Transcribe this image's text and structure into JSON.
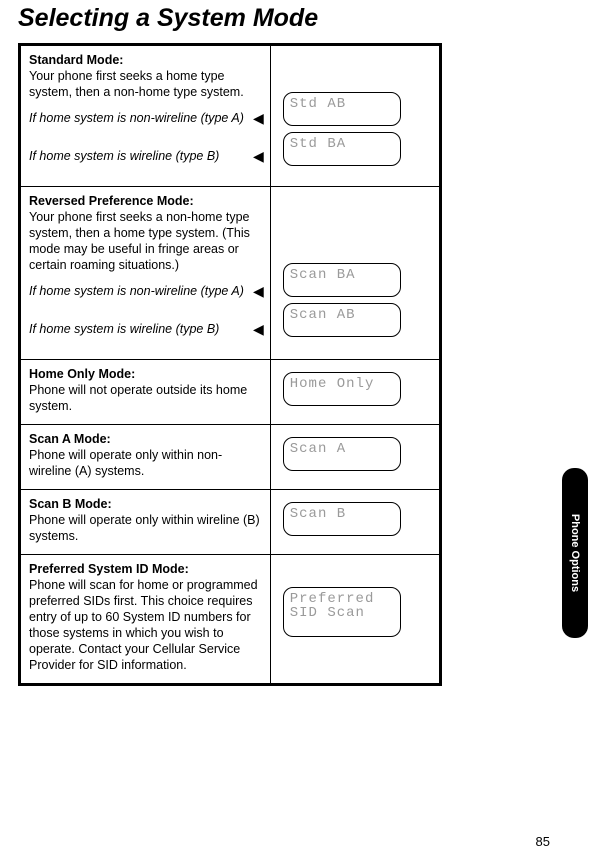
{
  "title": "Selecting a System Mode",
  "sideTab": "Phone Options",
  "pageNumber": "85",
  "rows": {
    "standard": {
      "heading": "Standard Mode:",
      "body": "Your phone first seeks a home type system, then a non-home type system.",
      "noteA": "If home system is non-wireline (type A)",
      "noteB": "If home system is wireline (type B)",
      "lcdA": "Std AB",
      "lcdB": "Std BA"
    },
    "reversed": {
      "heading": "Reversed Preference Mode:",
      "body": "Your phone first seeks a non-home type system, then a home type system. (This mode may be useful in fringe areas or certain roaming situations.)",
      "noteA": "If home system is non-wireline (type A)",
      "noteB": "If home system is wireline (type B)",
      "lcdA": "Scan BA",
      "lcdB": "Scan AB"
    },
    "homeOnly": {
      "heading": "Home Only Mode:",
      "body": "Phone will not operate outside its home system.",
      "lcd": "Home Only"
    },
    "scanA": {
      "heading": "Scan A Mode:",
      "body": "Phone will operate only within non-wireline (A) systems.",
      "lcd": "Scan A"
    },
    "scanB": {
      "heading": "Scan B Mode:",
      "body": "Phone will operate only within wireline (B) systems.",
      "lcd": "Scan B"
    },
    "preferred": {
      "heading": "Preferred System ID Mode:",
      "body": "Phone will scan for home or programmed preferred SIDs first. This choice requires entry of up to 60 System ID numbers for those systems in which you wish to operate. Contact your Cellular Service Provider for SID information.",
      "lcd": "Preferred\nSID Scan"
    }
  }
}
